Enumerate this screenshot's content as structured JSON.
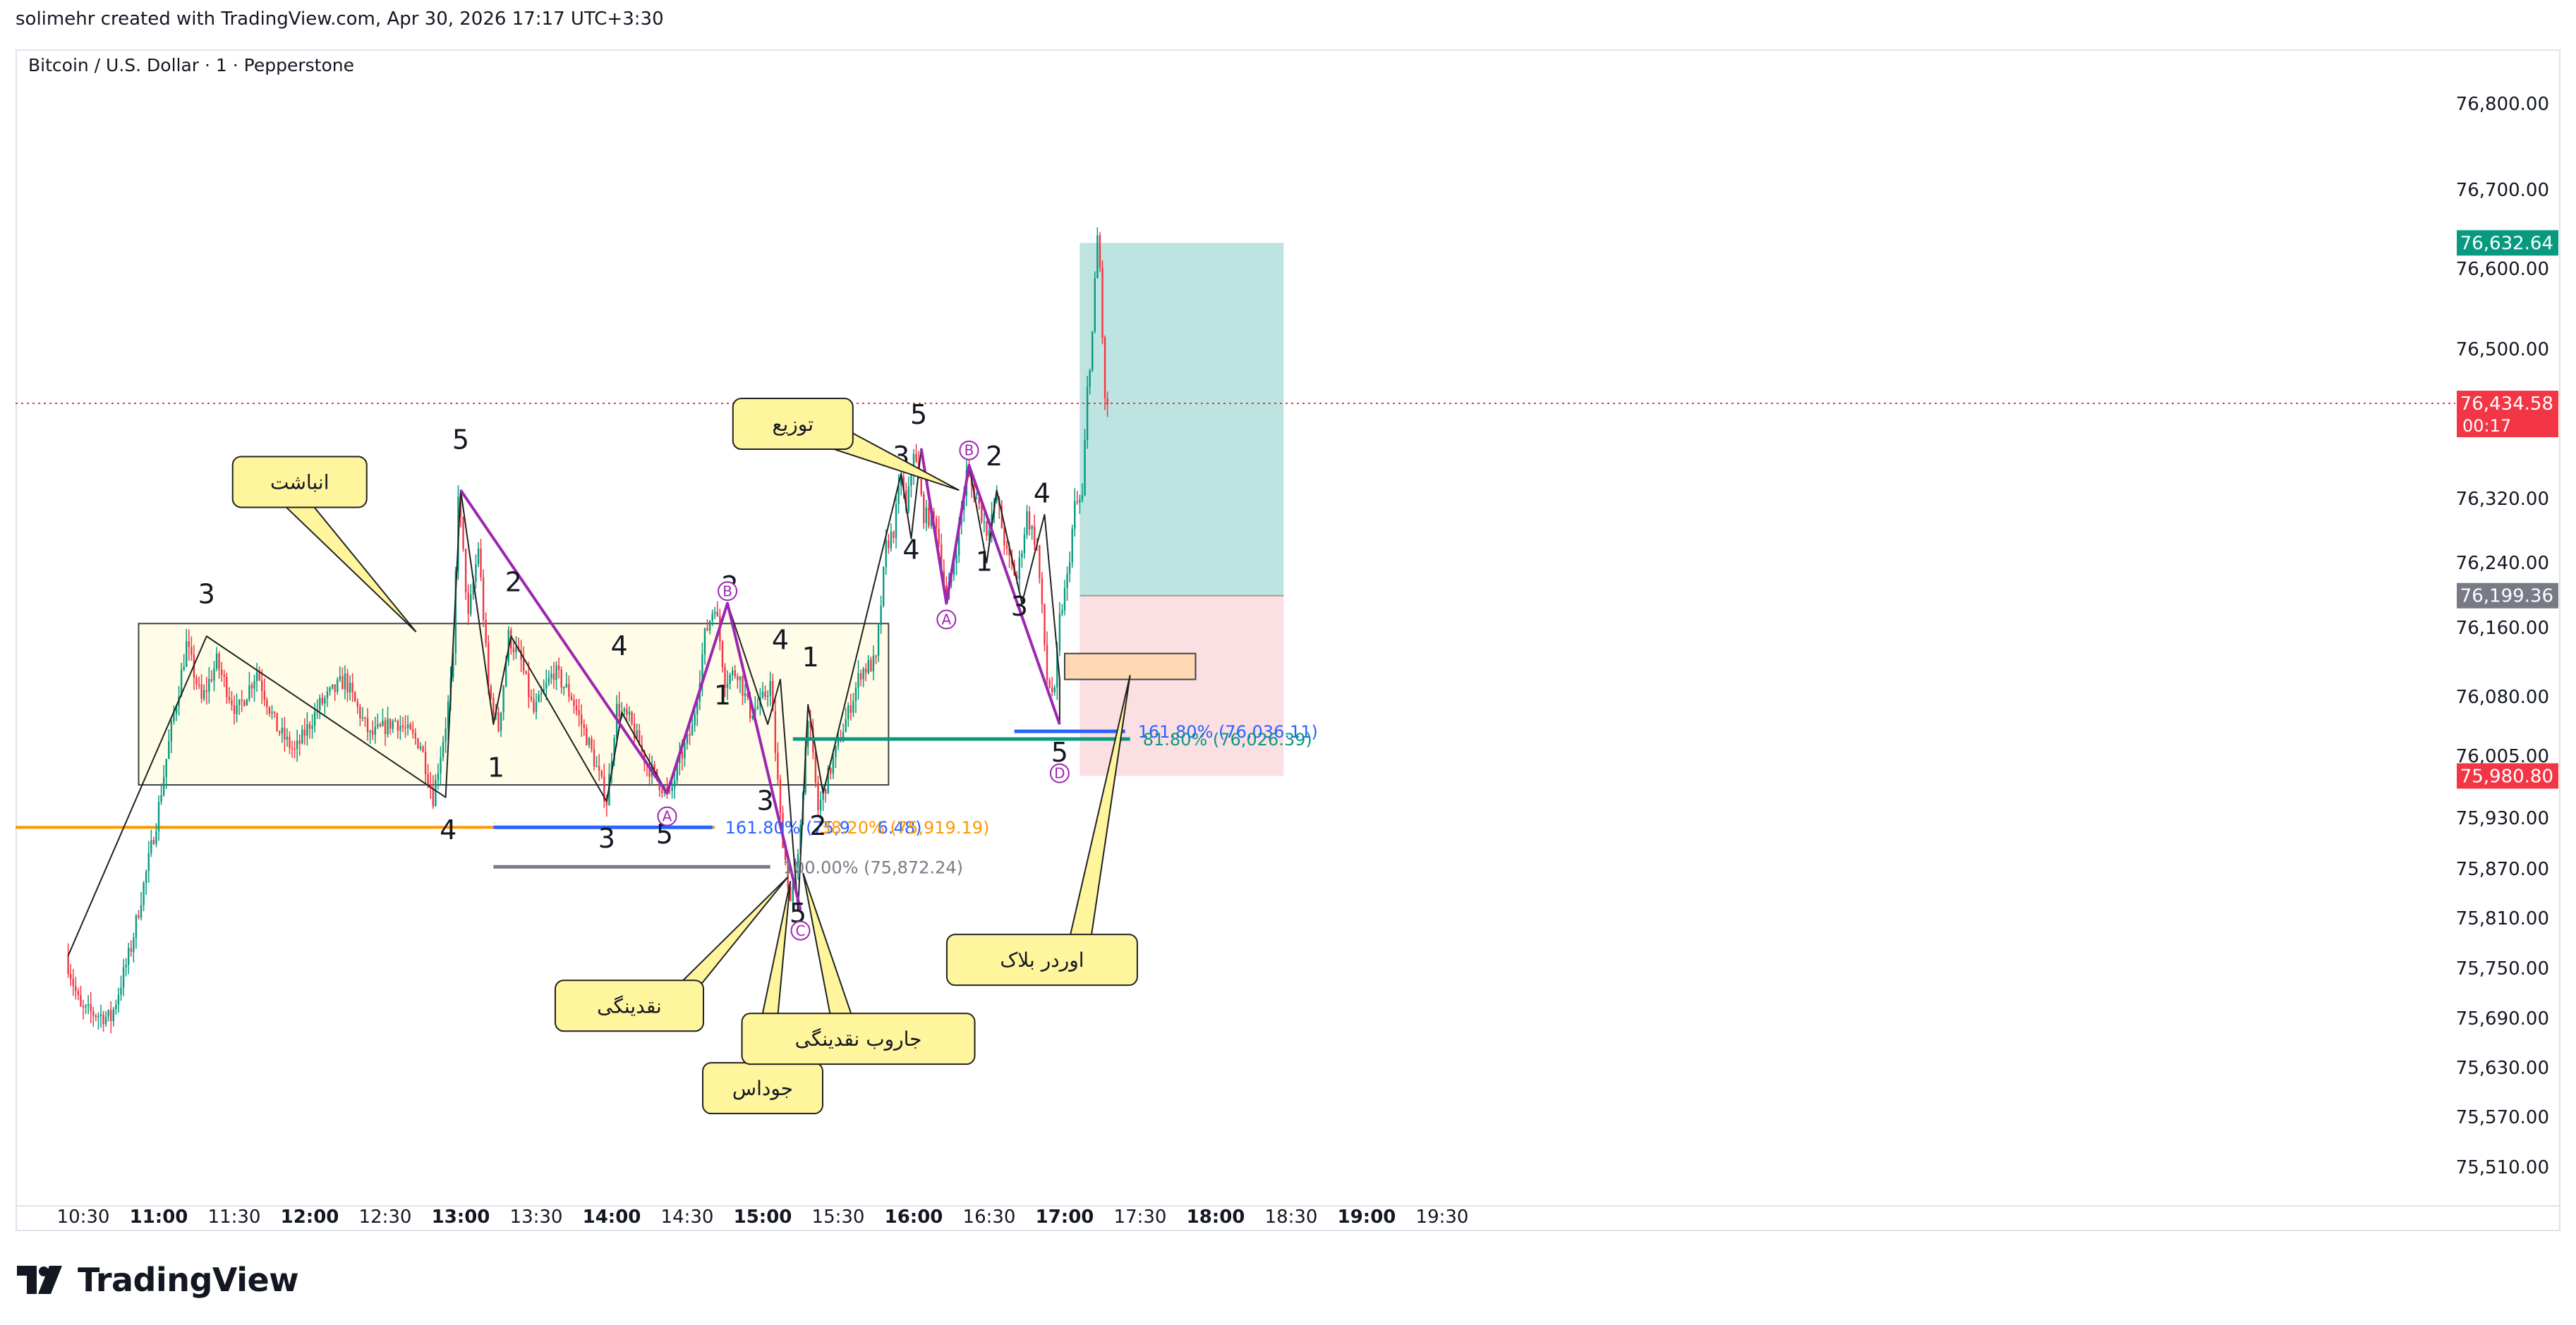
{
  "header": {
    "text": "solimehr created with TradingView.com, Apr 30, 2026 17:17 UTC+3:30"
  },
  "symbol": {
    "text": "Bitcoin / U.S. Dollar · 1 · Pepperstone"
  },
  "logo": {
    "text": "TradingView",
    "icon": "tradingview-logo-icon"
  },
  "colors": {
    "up": "#089981",
    "down": "#f23645",
    "wave": "#9c27b0",
    "fib_blue": "#2962ff",
    "fib_orange": "#ff9800",
    "fib_gray": "#787b86",
    "fib_teal": "#089981",
    "callout_fill": "#fff59d",
    "callout_border": "#212121",
    "range_fill": "#fffde7",
    "target_fill": "#b2dfdb",
    "stop_fill": "#fcdbe0"
  },
  "chart_data": {
    "type": "candlestick",
    "x_axis": {
      "ticks": [
        {
          "label": "10:30",
          "t": "10:30",
          "bold": false
        },
        {
          "label": "11:00",
          "t": "11:00",
          "bold": true
        },
        {
          "label": "11:30",
          "t": "11:30",
          "bold": false
        },
        {
          "label": "12:00",
          "t": "12:00",
          "bold": true
        },
        {
          "label": "12:30",
          "t": "12:30",
          "bold": false
        },
        {
          "label": "13:00",
          "t": "13:00",
          "bold": true
        },
        {
          "label": "13:30",
          "t": "13:30",
          "bold": false
        },
        {
          "label": "14:00",
          "t": "14:00",
          "bold": true
        },
        {
          "label": "14:30",
          "t": "14:30",
          "bold": false
        },
        {
          "label": "15:00",
          "t": "15:00",
          "bold": true
        },
        {
          "label": "15:30",
          "t": "15:30",
          "bold": false
        },
        {
          "label": "16:00",
          "t": "16:00",
          "bold": true
        },
        {
          "label": "16:30",
          "t": "16:30",
          "bold": false
        },
        {
          "label": "17:00",
          "t": "17:00",
          "bold": true
        },
        {
          "label": "17:30",
          "t": "17:30",
          "bold": false
        },
        {
          "label": "18:00",
          "t": "18:00",
          "bold": true
        },
        {
          "label": "18:30",
          "t": "18:30",
          "bold": false
        },
        {
          "label": "19:00",
          "t": "19:00",
          "bold": true
        },
        {
          "label": "19:30",
          "t": "19:30",
          "bold": false
        }
      ]
    },
    "y_axis": {
      "ticks": [
        {
          "label": "76,800.00",
          "v": 76800
        },
        {
          "label": "76,700.00",
          "v": 76700
        },
        {
          "label": "76,600.00",
          "v": 76600
        },
        {
          "label": "76,500.00",
          "v": 76500
        },
        {
          "label": "76,320.00",
          "v": 76320
        },
        {
          "label": "76,240.00",
          "v": 76240
        },
        {
          "label": "76,160.00",
          "v": 76160
        },
        {
          "label": "76,080.00",
          "v": 76080
        },
        {
          "label": "76,005.00",
          "v": 76005
        },
        {
          "label": "75,930.00",
          "v": 75930
        },
        {
          "label": "75,870.00",
          "v": 75870
        },
        {
          "label": "75,810.00",
          "v": 75810
        },
        {
          "label": "75,750.00",
          "v": 75750
        },
        {
          "label": "75,690.00",
          "v": 75690
        },
        {
          "label": "75,630.00",
          "v": 75630
        },
        {
          "label": "75,570.00",
          "v": 75570
        },
        {
          "label": "75,510.00",
          "v": 75510
        }
      ]
    },
    "price_badges": [
      {
        "label": "76,632.64",
        "v": 76632.64,
        "color": "#089981"
      },
      {
        "label": "76,434.58",
        "sub": "00:17",
        "v": 76434.58,
        "color": "#f23645"
      },
      {
        "label": "76,199.36",
        "v": 76199.36,
        "color": "#787b86"
      },
      {
        "label": "75,980.80",
        "v": 75980.8,
        "color": "#f23645"
      }
    ],
    "current_price": 76434.58,
    "price_path": [
      [
        "10:24",
        75765
      ],
      [
        "10:30",
        75700
      ],
      [
        "10:42",
        75690
      ],
      [
        "10:50",
        75775
      ],
      [
        "11:00",
        75925
      ],
      [
        "11:06",
        76040
      ],
      [
        "11:12",
        76140
      ],
      [
        "11:18",
        76075
      ],
      [
        "11:24",
        76120
      ],
      [
        "11:32",
        76060
      ],
      [
        "11:40",
        76110
      ],
      [
        "11:48",
        76040
      ],
      [
        "11:55",
        76010
      ],
      [
        "12:05",
        76070
      ],
      [
        "12:15",
        76100
      ],
      [
        "12:25",
        76030
      ],
      [
        "12:35",
        76050
      ],
      [
        "12:45",
        76020
      ],
      [
        "12:50",
        75955
      ],
      [
        "12:55",
        76045
      ],
      [
        "12:58",
        76120
      ],
      [
        "13:00",
        76330
      ],
      [
        "13:04",
        76170
      ],
      [
        "13:08",
        76260
      ],
      [
        "13:12",
        76090
      ],
      [
        "13:16",
        76040
      ],
      [
        "13:20",
        76150
      ],
      [
        "13:25",
        76120
      ],
      [
        "13:30",
        76060
      ],
      [
        "13:38",
        76110
      ],
      [
        "13:45",
        76080
      ],
      [
        "13:52",
        76020
      ],
      [
        "13:59",
        75950
      ],
      [
        "14:03",
        76065
      ],
      [
        "14:08",
        76050
      ],
      [
        "14:15",
        75995
      ],
      [
        "14:24",
        75955
      ],
      [
        "14:28",
        76000
      ],
      [
        "14:33",
        76040
      ],
      [
        "14:38",
        76150
      ],
      [
        "14:42",
        76190
      ],
      [
        "14:46",
        76100
      ],
      [
        "14:51",
        76110
      ],
      [
        "14:56",
        76060
      ],
      [
        "15:00",
        76070
      ],
      [
        "15:04",
        76095
      ],
      [
        "15:08",
        75930
      ],
      [
        "15:12",
        75830
      ],
      [
        "15:15",
        75880
      ],
      [
        "15:19",
        76060
      ],
      [
        "15:23",
        75940
      ],
      [
        "15:28",
        75990
      ],
      [
        "15:34",
        76050
      ],
      [
        "15:40",
        76110
      ],
      [
        "15:46",
        76120
      ],
      [
        "15:50",
        76260
      ],
      [
        "15:53",
        76280
      ],
      [
        "15:56",
        76350
      ],
      [
        "15:58",
        76300
      ],
      [
        "16:01",
        76380
      ],
      [
        "16:05",
        76300
      ],
      [
        "16:10",
        76290
      ],
      [
        "16:14",
        76190
      ],
      [
        "16:18",
        76260
      ],
      [
        "16:22",
        76350
      ],
      [
        "16:26",
        76320
      ],
      [
        "16:30",
        76280
      ],
      [
        "16:34",
        76320
      ],
      [
        "16:38",
        76250
      ],
      [
        "16:42",
        76220
      ],
      [
        "16:46",
        76300
      ],
      [
        "16:50",
        76260
      ],
      [
        "16:54",
        76100
      ],
      [
        "16:57",
        76080
      ],
      [
        "16:59",
        76170
      ],
      [
        "17:02",
        76220
      ],
      [
        "17:05",
        76310
      ],
      [
        "17:08",
        76320
      ],
      [
        "17:10",
        76450
      ],
      [
        "17:12",
        76520
      ],
      [
        "17:14",
        76640
      ],
      [
        "17:15",
        76600
      ],
      [
        "17:17",
        76434
      ]
    ],
    "wave_labels": [
      {
        "text": "3",
        "t": "11:19",
        "v": 76190,
        "color": "#131722"
      },
      {
        "text": "5",
        "t": "13:00",
        "v": 76380,
        "color": "#131722"
      },
      {
        "text": "2",
        "t": "13:21",
        "v": 76205,
        "color": "#131722"
      },
      {
        "text": "4",
        "t": "12:55",
        "v": 75905,
        "color": "#131722"
      },
      {
        "text": "1",
        "t": "13:14",
        "v": 75980,
        "color": "#131722"
      },
      {
        "text": "4",
        "t": "14:03",
        "v": 76128,
        "color": "#131722"
      },
      {
        "text": "3",
        "t": "13:58",
        "v": 75895,
        "color": "#131722"
      },
      {
        "text": "5",
        "t": "14:21",
        "v": 75900,
        "color": "#131722"
      },
      {
        "text": "2",
        "t": "14:47",
        "v": 76200,
        "color": "#131722"
      },
      {
        "text": "1",
        "t": "14:44",
        "v": 76070,
        "color": "#131722"
      },
      {
        "text": "4",
        "t": "15:07",
        "v": 76135,
        "color": "#131722"
      },
      {
        "text": "1",
        "t": "15:19",
        "v": 76115,
        "color": "#131722"
      },
      {
        "text": "3",
        "t": "15:01",
        "v": 75940,
        "color": "#131722"
      },
      {
        "text": "2",
        "t": "15:22",
        "v": 75910,
        "color": "#131722"
      },
      {
        "text": "5",
        "t": "15:14",
        "v": 75805,
        "color": "#131722"
      },
      {
        "text": "3",
        "t": "15:55",
        "v": 76360,
        "color": "#131722"
      },
      {
        "text": "5",
        "t": "16:02",
        "v": 76410,
        "color": "#131722"
      },
      {
        "text": "4",
        "t": "15:59",
        "v": 76245,
        "color": "#131722"
      },
      {
        "text": "2",
        "t": "16:32",
        "v": 76360,
        "color": "#131722"
      },
      {
        "text": "1",
        "t": "16:28",
        "v": 76230,
        "color": "#131722"
      },
      {
        "text": "4",
        "t": "16:51",
        "v": 76315,
        "color": "#131722"
      },
      {
        "text": "3",
        "t": "16:42",
        "v": 76175,
        "color": "#131722"
      },
      {
        "text": "5",
        "t": "16:58",
        "v": 75998,
        "color": "#131722"
      }
    ],
    "circled_labels": [
      {
        "text": "A",
        "t": "14:22",
        "v": 75932
      },
      {
        "text": "B",
        "t": "14:46",
        "v": 76205
      },
      {
        "text": "C",
        "t": "15:15",
        "v": 75795
      },
      {
        "text": "A",
        "t": "16:13",
        "v": 76170
      },
      {
        "text": "B",
        "t": "16:22",
        "v": 76378
      },
      {
        "text": "D",
        "t": "16:58",
        "v": 75984
      }
    ],
    "fib_levels": [
      {
        "label": "161.80% (75,9",
        "label2": "6.48)",
        "v": 75919,
        "t1": "13:13",
        "t2": "14:40",
        "color": "#2962ff"
      },
      {
        "label": "38.20% (75,919.19)",
        "v": 75919.19,
        "t1": "15:20",
        "t2": "15:20",
        "color": "#ff9800"
      },
      {
        "label": "100.00% (75,872.24)",
        "v": 75872.24,
        "t1": "13:13",
        "t2": "15:03",
        "color": "#787b86"
      },
      {
        "label": "161.80% (76,036.11)",
        "v": 76036.11,
        "t1": "16:40",
        "t2": "17:24",
        "color": "#2962ff"
      },
      {
        "label": "81.80% (76,026.39)",
        "v": 76026.39,
        "t1": "15:12",
        "t2": "17:26",
        "color": "#089981"
      }
    ],
    "horizontal_line": {
      "v": 75919,
      "color": "#ff9800"
    },
    "range_box": {
      "t1": "10:52",
      "t2": "15:50",
      "v1": 76165,
      "v2": 75970
    },
    "position": {
      "t1": "17:06",
      "t2": "18:27",
      "entry": 76199.36,
      "target": 76632.64,
      "stop": 75980.8
    },
    "order_block": {
      "t1": "17:00",
      "t2": "17:52",
      "v1": 76130,
      "v2": 76100
    },
    "callouts": [
      {
        "text": "انباشت",
        "t": "11:56",
        "v": 76340
      },
      {
        "text": "توزیع",
        "t": "15:12",
        "v": 76410
      },
      {
        "text": "نقدینگی",
        "t": "14:07",
        "v": 75705
      },
      {
        "text": "جوداس",
        "t": "15:00",
        "v": 75605
      },
      {
        "text": "جاروب نقدینگی",
        "t": "15:38",
        "v": 75665
      },
      {
        "text": "اوردر بلاک",
        "t": "16:51",
        "v": 75760
      }
    ]
  }
}
